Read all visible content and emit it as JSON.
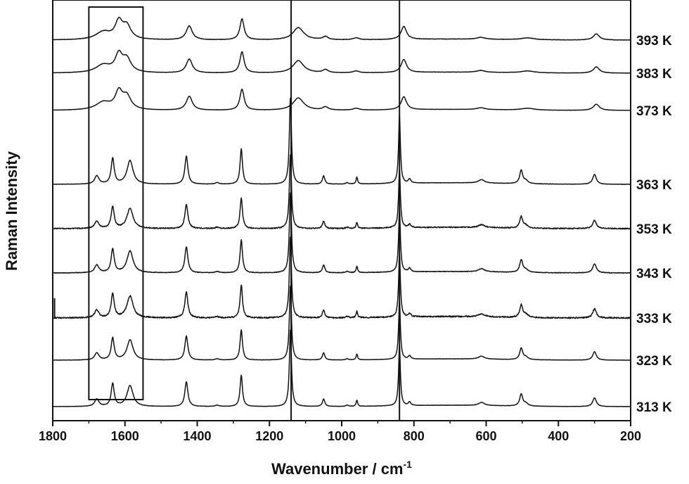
{
  "chart_data": {
    "type": "line",
    "xlabel": "Wavenumber / cm",
    "xlabel_superscript": "-1",
    "ylabel": "Raman Intensity",
    "xlim": [
      1800,
      200
    ],
    "x_reversed": true,
    "x_ticks": [
      1800,
      1600,
      1400,
      1200,
      1000,
      800,
      600,
      400,
      200
    ],
    "y_ticks_shown": false,
    "grid": false,
    "legend": "labels at right end of each trace",
    "highlight_box_x_range": [
      1700,
      1550
    ],
    "vertical_reference_lines_x": [
      1140,
      840
    ],
    "series": [
      {
        "name": "393 K",
        "phase": "high"
      },
      {
        "name": "383 K",
        "phase": "high"
      },
      {
        "name": "373 K",
        "phase": "high"
      },
      {
        "name": "363 K",
        "phase": "low"
      },
      {
        "name": "353 K",
        "phase": "low"
      },
      {
        "name": "343 K",
        "phase": "low"
      },
      {
        "name": "333 K",
        "phase": "low"
      },
      {
        "name": "323 K",
        "phase": "low"
      },
      {
        "name": "313 K",
        "phase": "low"
      }
    ],
    "peaks_low_phase": [
      {
        "x": 1678,
        "h": 0.17,
        "w": 7
      },
      {
        "x": 1634,
        "h": 0.52,
        "w": 5
      },
      {
        "x": 1586,
        "h": 0.48,
        "w": 10
      },
      {
        "x": 1430,
        "h": 0.57,
        "w": 5
      },
      {
        "x": 1345,
        "h": 0.03,
        "w": 6
      },
      {
        "x": 1278,
        "h": 0.72,
        "w": 4
      },
      {
        "x": 1142,
        "h": 1.75,
        "w": 3.5
      },
      {
        "x": 1050,
        "h": 0.17,
        "w": 4
      },
      {
        "x": 985,
        "h": 0.03,
        "w": 4
      },
      {
        "x": 958,
        "h": 0.14,
        "w": 2.5
      },
      {
        "x": 840,
        "h": 1.4,
        "w": 3
      },
      {
        "x": 812,
        "h": 0.08,
        "w": 4
      },
      {
        "x": 613,
        "h": 0.07,
        "w": 10
      },
      {
        "x": 503,
        "h": 0.27,
        "w": 5
      },
      {
        "x": 490,
        "h": 0.06,
        "w": 7
      },
      {
        "x": 300,
        "h": 0.2,
        "w": 6
      }
    ],
    "peaks_high_phase": [
      {
        "x": 1660,
        "h": 0.25,
        "w": 25
      },
      {
        "x": 1617,
        "h": 0.55,
        "w": 12
      },
      {
        "x": 1595,
        "h": 0.42,
        "w": 14
      },
      {
        "x": 1422,
        "h": 0.45,
        "w": 10
      },
      {
        "x": 1276,
        "h": 0.68,
        "w": 7
      },
      {
        "x": 1120,
        "h": 0.4,
        "w": 18
      },
      {
        "x": 1045,
        "h": 0.1,
        "w": 9
      },
      {
        "x": 960,
        "h": 0.06,
        "w": 10
      },
      {
        "x": 828,
        "h": 0.42,
        "w": 9
      },
      {
        "x": 615,
        "h": 0.06,
        "w": 14
      },
      {
        "x": 485,
        "h": 0.06,
        "w": 22
      },
      {
        "x": 295,
        "h": 0.2,
        "w": 10
      }
    ],
    "noise_level": {
      "393 K": 0.006,
      "383 K": 0.004,
      "373 K": 0.003,
      "363 K": 0.003,
      "353 K": 0.012,
      "343 K": 0.006,
      "333 K": 0.014,
      "323 K": 0.003,
      "313 K": 0.003
    }
  }
}
